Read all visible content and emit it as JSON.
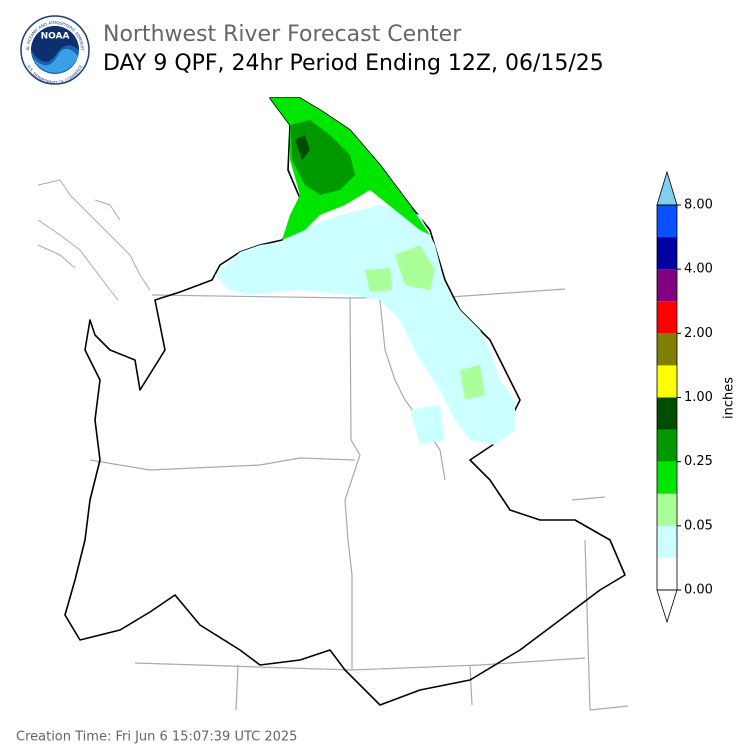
{
  "header": {
    "title": "Northwest River Forecast Center",
    "subtitle": "DAY 9 QPF, 24hr Period Ending 12Z, 06/15/25"
  },
  "logo": {
    "text": "NOAA",
    "ring_top": "NATIONAL OCEANIC AND ATMOSPHERIC ADMINISTRATION",
    "ring_bottom": "U.S. DEPARTMENT OF COMMERCE"
  },
  "colorbar": {
    "label": "inches",
    "colors": [
      "#ffffff",
      "#ccffff",
      "#aaff99",
      "#00e600",
      "#009900",
      "#004d00",
      "#ffff00",
      "#808000",
      "#ff0000",
      "#800080",
      "#0000a0",
      "#0a50ff"
    ],
    "over_color": "#80d0f0",
    "under_color": "#ffffff",
    "ticks": [
      {
        "value": 0,
        "label": "0.00"
      },
      {
        "value": 0.05,
        "label": "0.05"
      },
      {
        "value": 0.25,
        "label": "0.25"
      },
      {
        "value": 1,
        "label": "1.00"
      },
      {
        "value": 2,
        "label": "2.00"
      },
      {
        "value": 4,
        "label": "4.00"
      },
      {
        "value": 8,
        "label": "8.00"
      }
    ]
  },
  "footer": {
    "creation_time": "Creation Time: Fri Jun 6 15:07:39 UTC 2025"
  }
}
